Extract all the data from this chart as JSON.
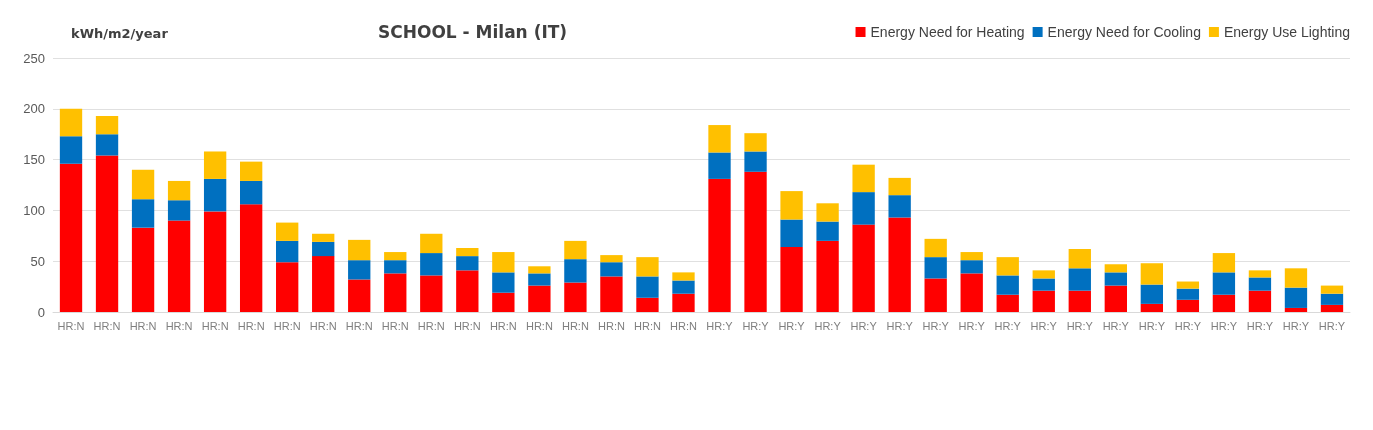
{
  "chart_data": {
    "type": "bar",
    "stacked": true,
    "title": "SCHOOL - Milan (IT)",
    "ylabel": "kWh/m2/year",
    "categories": [
      "HR:N",
      "HR:N",
      "HR:N",
      "HR:N",
      "HR:N",
      "HR:N",
      "HR:N",
      "HR:N",
      "HR:N",
      "HR:N",
      "HR:N",
      "HR:N",
      "HR:N",
      "HR:N",
      "HR:N",
      "HR:N",
      "HR:N",
      "HR:N",
      "HR:Y",
      "HR:Y",
      "HR:Y",
      "HR:Y",
      "HR:Y",
      "HR:Y",
      "HR:Y",
      "HR:Y",
      "HR:Y",
      "HR:Y",
      "HR:Y",
      "HR:Y",
      "HR:Y",
      "HR:Y",
      "HR:Y",
      "HR:Y",
      "HR:Y",
      "HR:Y"
    ],
    "series": [
      {
        "name": "Energy Need for Heating",
        "color": "#ff0000",
        "values": [
          146,
          154,
          83,
          90,
          99,
          106,
          49,
          55,
          32,
          38,
          36,
          41,
          19,
          26,
          29,
          35,
          14,
          18,
          131,
          138,
          64,
          70,
          86,
          93,
          33,
          38,
          17,
          21,
          21,
          26,
          8,
          12,
          17,
          21,
          4,
          7
        ]
      },
      {
        "name": "Energy Need for Cooling",
        "color": "#0070c0",
        "values": [
          27,
          21,
          28,
          20,
          32,
          23,
          21,
          14,
          19,
          13,
          22,
          14,
          20,
          12,
          23,
          14,
          21,
          13,
          26,
          20,
          27,
          19,
          32,
          22,
          21,
          13,
          19,
          12,
          22,
          13,
          19,
          11,
          22,
          13,
          20,
          11
        ]
      },
      {
        "name": "Energy Use Lighting",
        "color": "#ffc000",
        "values": [
          27,
          18,
          29,
          19,
          27,
          19,
          18,
          8,
          20,
          8,
          19,
          8,
          20,
          7,
          18,
          7,
          19,
          8,
          27,
          18,
          28,
          18,
          27,
          17,
          18,
          8,
          18,
          8,
          19,
          8,
          21,
          7,
          19,
          7,
          19,
          8
        ]
      }
    ],
    "ylim": [
      0,
      250
    ],
    "yticks": [
      0,
      50,
      100,
      150,
      200,
      250
    ],
    "grid": "y",
    "legend": "top right"
  }
}
